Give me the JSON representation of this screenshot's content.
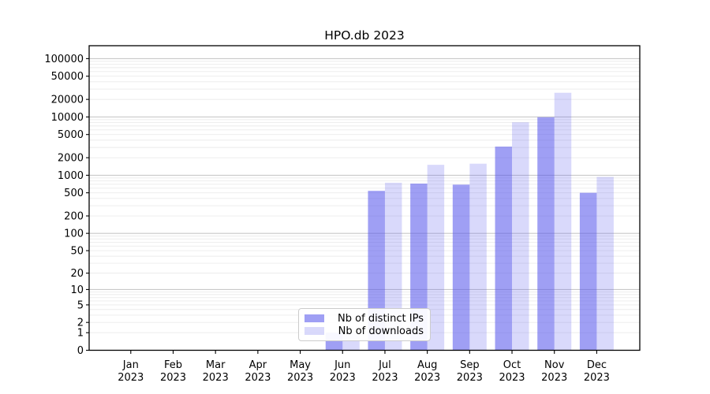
{
  "figure": {
    "title": "HPO.db 2023"
  },
  "legend": {
    "items": [
      {
        "label": "Nb of distinct IPs",
        "color": "rgba(80,80,235,0.55)"
      },
      {
        "label": "Nb of downloads",
        "color": "rgba(80,80,235,0.22)"
      }
    ]
  },
  "colors": {
    "ips_fill": "rgba(80,80,235,0.55)",
    "downloads_fill": "rgba(80,80,235,0.22)",
    "grid_major": "#c9c9c9",
    "grid_minor": "#ebebeb",
    "axis": "#000000",
    "text": "#000000"
  },
  "chart_data": {
    "type": "bar",
    "title": "HPO.db 2023",
    "categories": [
      "Jan 2023",
      "Feb 2023",
      "Mar 2023",
      "Apr 2023",
      "May 2023",
      "Jun 2023",
      "Jul 2023",
      "Aug 2023",
      "Sep 2023",
      "Oct 2023",
      "Nov 2023",
      "Dec 2023"
    ],
    "series": [
      {
        "name": "Nb of distinct IPs",
        "values": [
          0,
          0,
          0,
          0,
          0,
          1,
          540,
          720,
          690,
          3100,
          9900,
          500
        ]
      },
      {
        "name": "Nb of downloads",
        "values": [
          0,
          0,
          0,
          0,
          0,
          1,
          745,
          1510,
          1580,
          8100,
          26000,
          940
        ]
      }
    ],
    "xlabel": "",
    "ylabel": "",
    "yscale": "log1p",
    "y_ticks": [
      0,
      1,
      2,
      5,
      10,
      20,
      50,
      100,
      200,
      500,
      1000,
      2000,
      5000,
      10000,
      20000,
      50000,
      100000
    ],
    "ylim": [
      0,
      166000
    ],
    "grid": true,
    "legend_position": "inside lower center"
  }
}
